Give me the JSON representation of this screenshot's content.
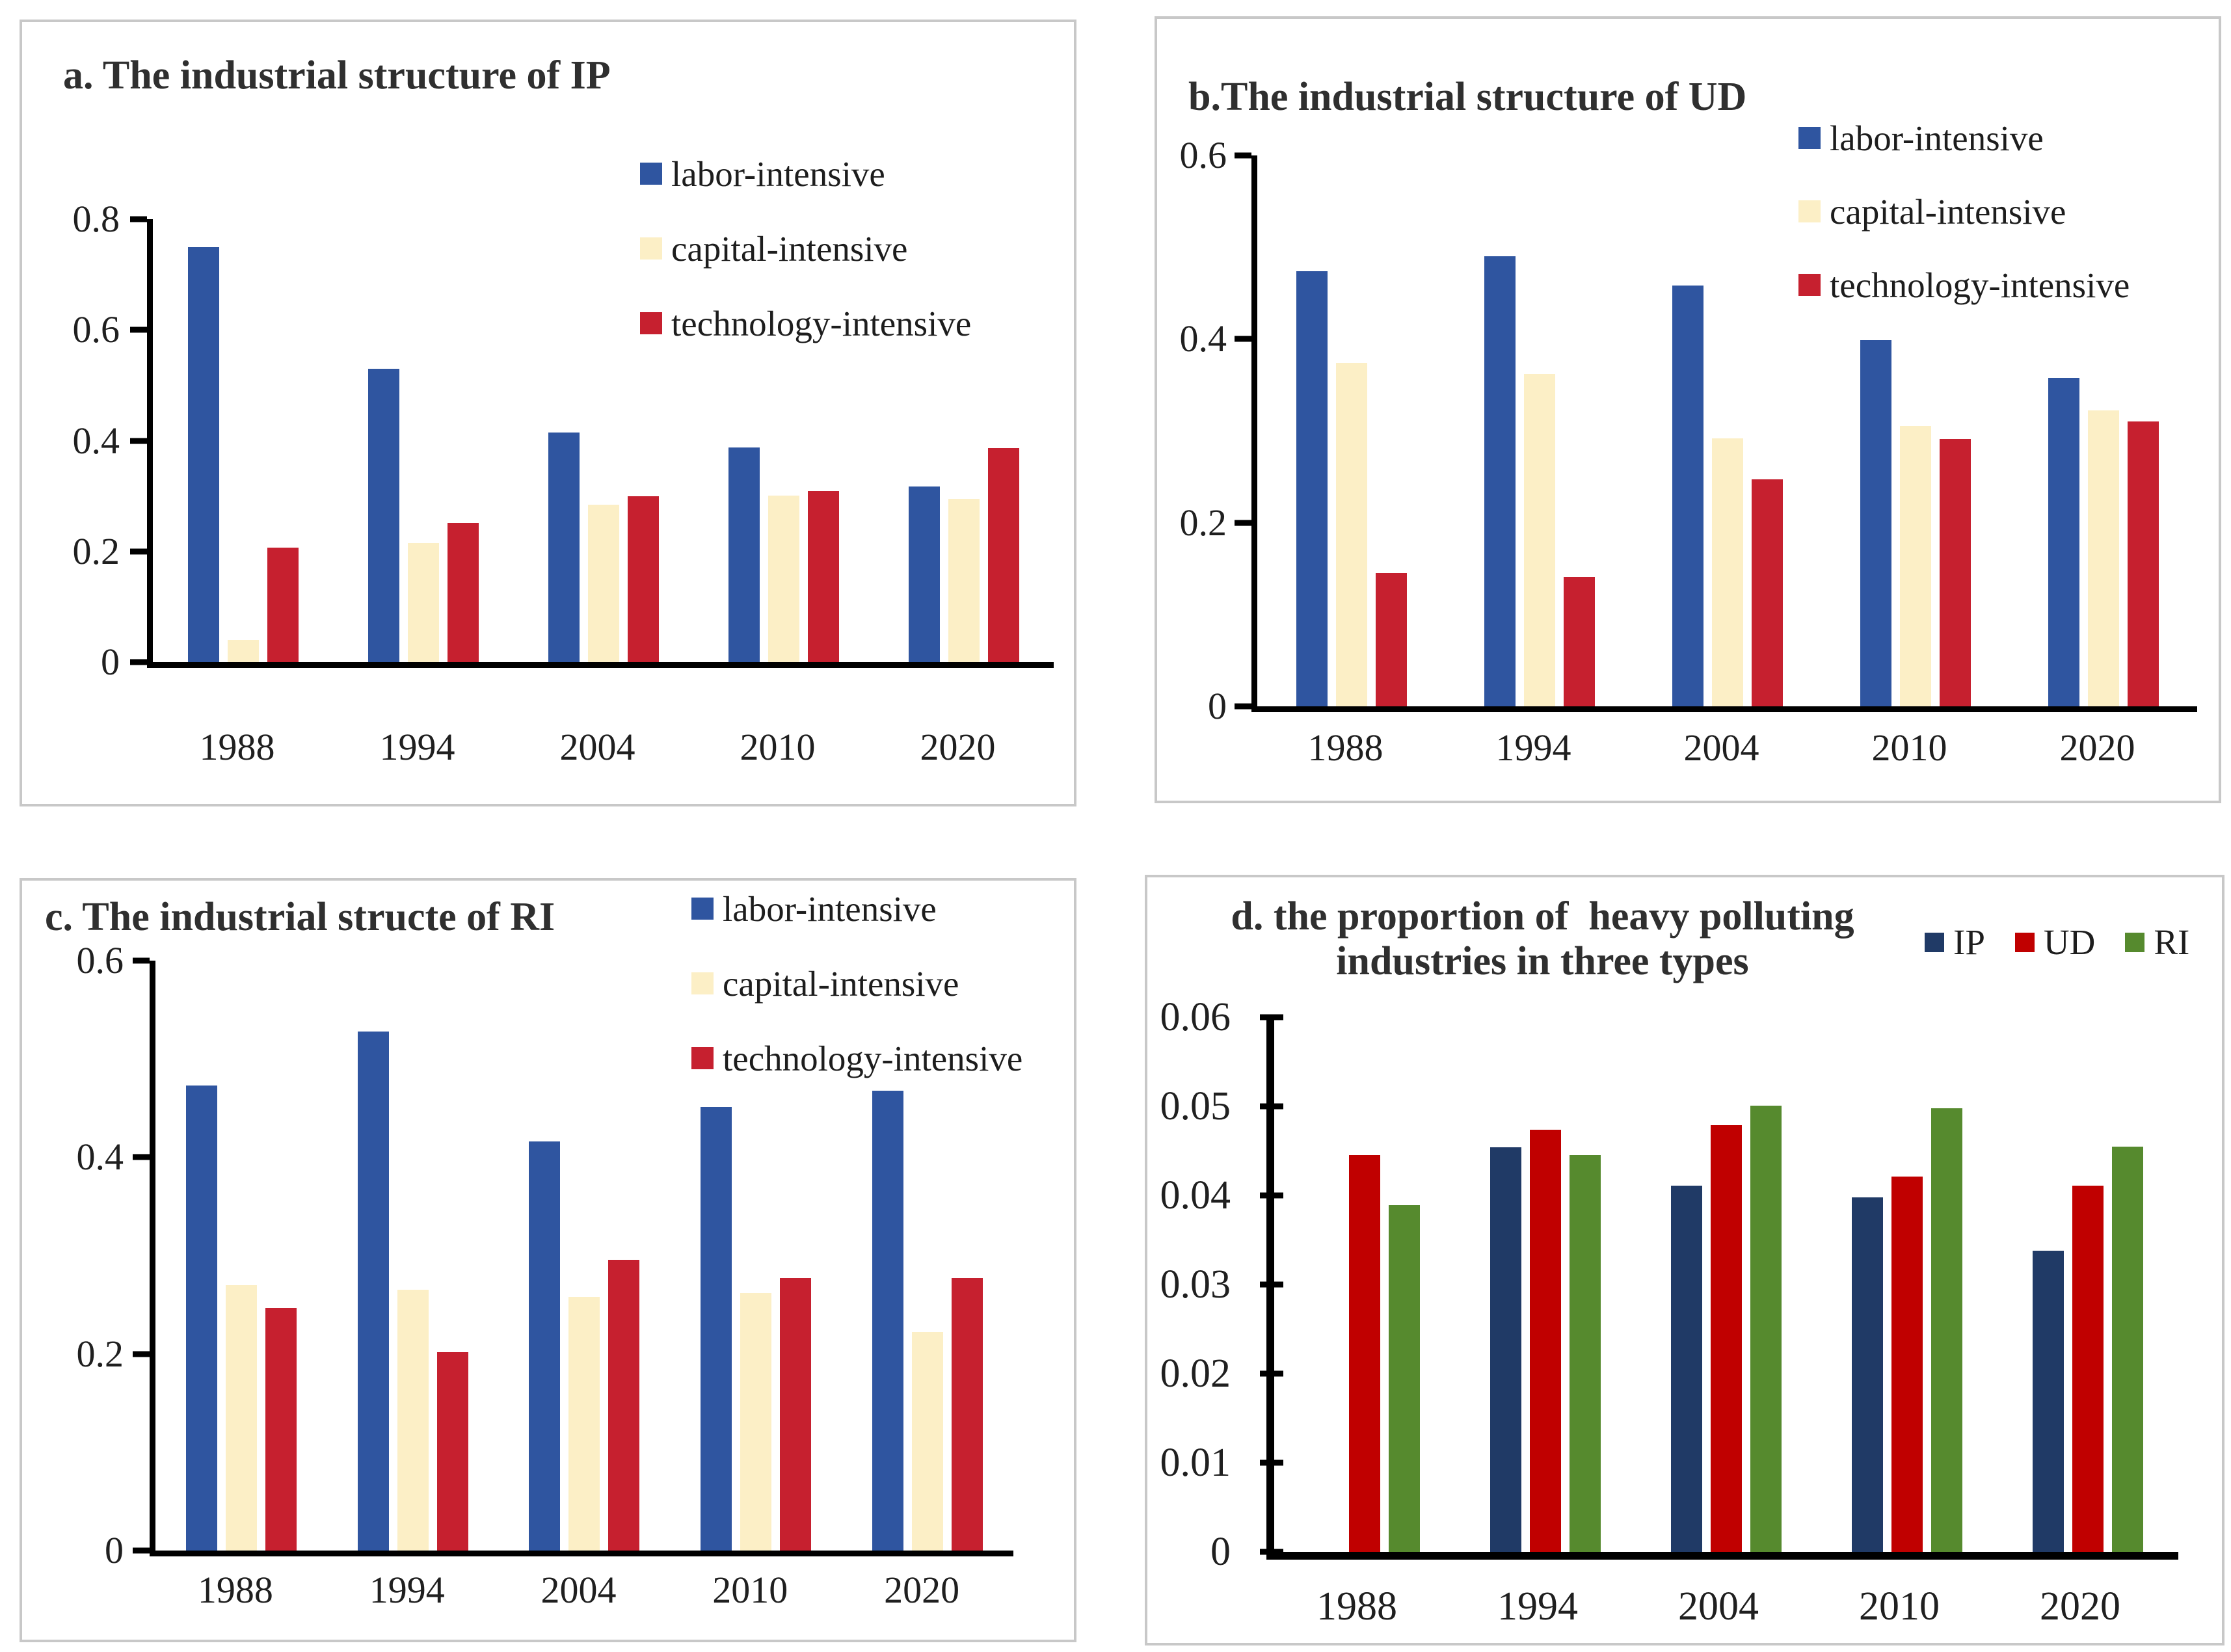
{
  "colors": {
    "labor_blue": "#2F55A0",
    "capital_cream": "#FCEFC6",
    "technology_crimson": "#C6202F",
    "ip_navy": "#203A66",
    "ud_red": "#C00000",
    "ri_green": "#568A2E",
    "axis_black": "#000000",
    "panel_border_gray": "#C8C8C8",
    "title_text": "#2F2F2F"
  },
  "chart_data": [
    {
      "id": "a",
      "type": "bar",
      "title": "a. The industrial structure of IP",
      "categories": [
        "1988",
        "1994",
        "2004",
        "2010",
        "2020"
      ],
      "series": [
        {
          "name": "labor-intensive",
          "color": "#2F55A0",
          "values": [
            0.75,
            0.53,
            0.415,
            0.388,
            0.317
          ]
        },
        {
          "name": "capital-intensive",
          "color": "#FCEFC6",
          "values": [
            0.04,
            0.215,
            0.284,
            0.301,
            0.295
          ]
        },
        {
          "name": "technology-intensive",
          "color": "#C6202F",
          "values": [
            0.207,
            0.252,
            0.3,
            0.309,
            0.387
          ]
        }
      ],
      "ylim": [
        0,
        0.8
      ],
      "ytick_labels": [
        "0.8",
        "0.6",
        "0.4",
        "0.2",
        "0"
      ],
      "legend_position": "inside-top-right-vertical",
      "grid": false
    },
    {
      "id": "b",
      "type": "bar",
      "title": "b.The industrial structure of UD",
      "categories": [
        "1988",
        "1994",
        "2004",
        "2010",
        "2020"
      ],
      "series": [
        {
          "name": "labor-intensive",
          "color": "#2F55A0",
          "values": [
            0.474,
            0.49,
            0.458,
            0.399,
            0.358
          ]
        },
        {
          "name": "capital-intensive",
          "color": "#FCEFC6",
          "values": [
            0.374,
            0.362,
            0.292,
            0.305,
            0.322
          ]
        },
        {
          "name": "technology-intensive",
          "color": "#C6202F",
          "values": [
            0.145,
            0.141,
            0.247,
            0.291,
            0.31
          ]
        }
      ],
      "ylim": [
        0,
        0.6
      ],
      "ytick_labels": [
        "0.6",
        "0.4",
        "0.2",
        "0"
      ],
      "legend_position": "inside-top-right-vertical",
      "grid": false
    },
    {
      "id": "c",
      "type": "bar",
      "title": "c. The industrial structe of RI",
      "categories": [
        "1988",
        "1994",
        "2004",
        "2010",
        "2020"
      ],
      "series": [
        {
          "name": "labor-intensive",
          "color": "#2F55A0",
          "values": [
            0.473,
            0.528,
            0.416,
            0.451,
            0.468
          ]
        },
        {
          "name": "capital-intensive",
          "color": "#FCEFC6",
          "values": [
            0.27,
            0.265,
            0.258,
            0.262,
            0.222
          ]
        },
        {
          "name": "technology-intensive",
          "color": "#C6202F",
          "values": [
            0.247,
            0.202,
            0.296,
            0.277,
            0.277
          ]
        }
      ],
      "ylim": [
        0,
        0.6
      ],
      "ytick_labels": [
        "0.6",
        "0.4",
        "0.2",
        "0"
      ],
      "legend_position": "inside-top-right-vertical",
      "grid": false
    },
    {
      "id": "d",
      "type": "bar",
      "title": "d. the proportion of  heavy polluting\nindustries in three types",
      "categories": [
        "1988",
        "1994",
        "2004",
        "2010",
        "2020"
      ],
      "series": [
        {
          "name": "IP",
          "color": "#203A66",
          "values": [
            null,
            0.0454,
            0.0411,
            0.0398,
            0.0338
          ]
        },
        {
          "name": "UD",
          "color": "#C00000",
          "values": [
            0.0445,
            0.0474,
            0.0479,
            0.0421,
            0.0411
          ]
        },
        {
          "name": "RI",
          "color": "#568A2E",
          "values": [
            0.0389,
            0.0445,
            0.0501,
            0.0498,
            0.0455
          ]
        }
      ],
      "ylim": [
        0,
        0.06
      ],
      "ytick_labels": [
        "0.06",
        "0.05",
        "0.04",
        "0.03",
        "0.02",
        "0.01",
        "0"
      ],
      "legend_position": "top-right-horizontal",
      "grid": false
    }
  ]
}
